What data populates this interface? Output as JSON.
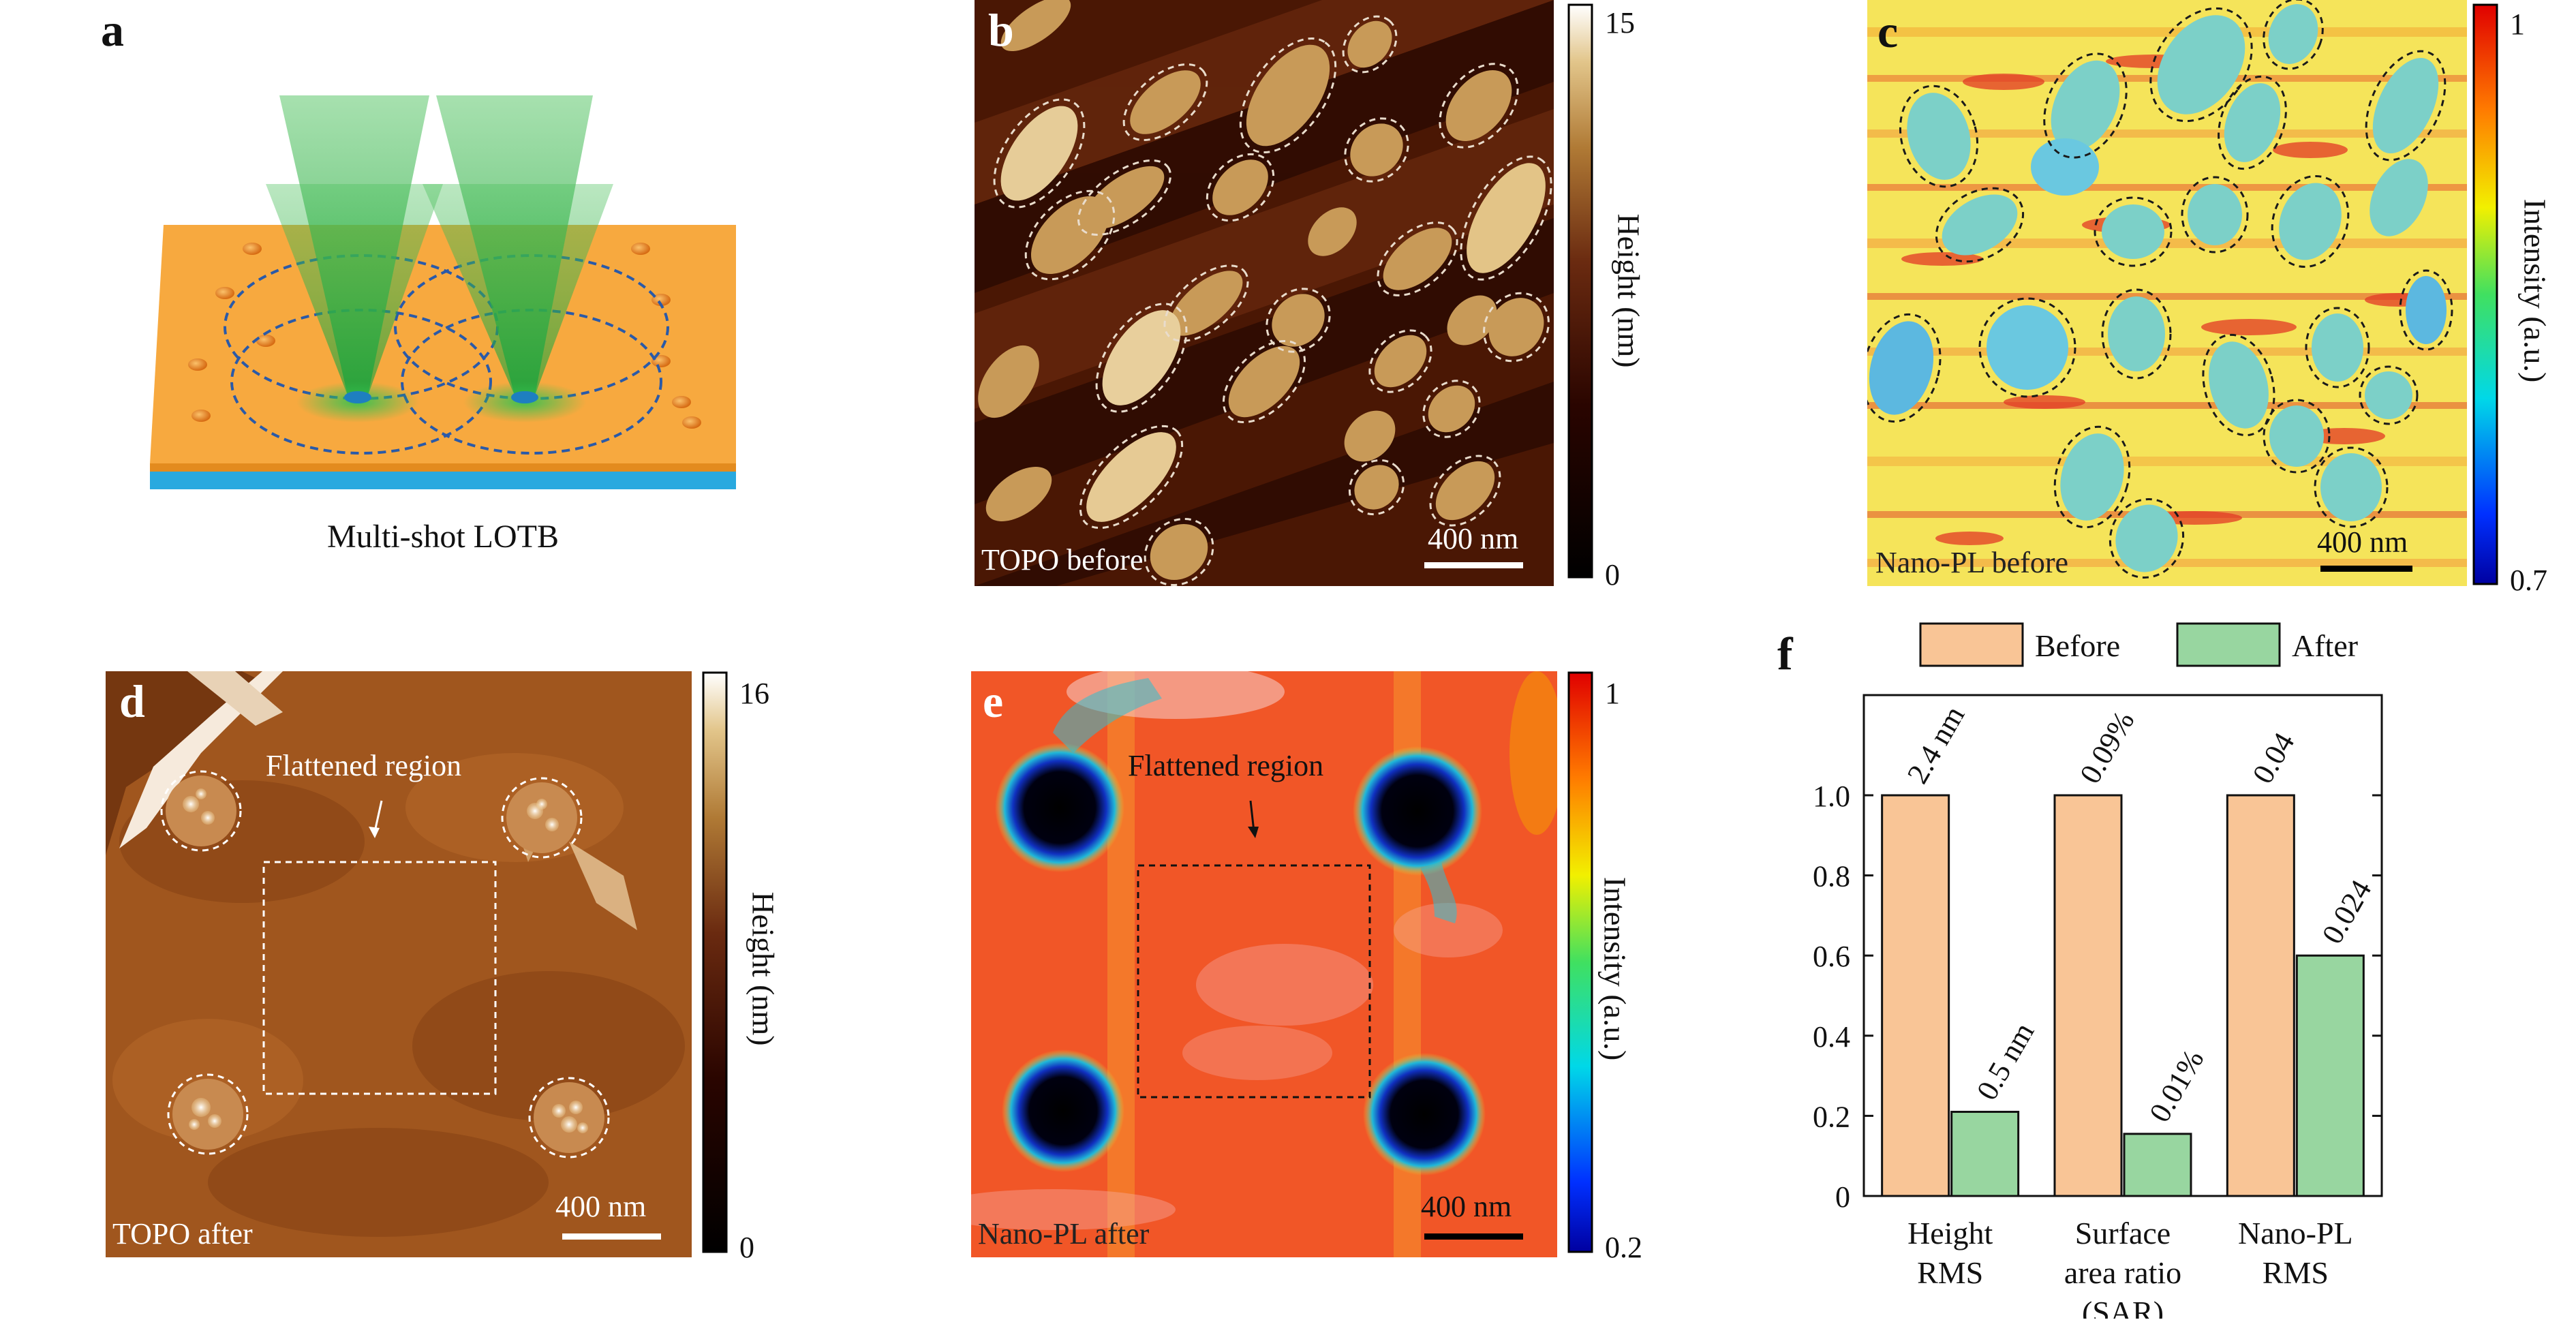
{
  "figure": {
    "panels": {
      "a": {
        "label": "a",
        "caption": "Multi-shot LOTB"
      },
      "b": {
        "label": "b",
        "image_label": "TOPO before",
        "scalebar": "400 nm",
        "colorbar": {
          "max": "15",
          "min": "0",
          "title": "Height (nm)"
        }
      },
      "c": {
        "label": "c",
        "image_label": "Nano-PL before",
        "scalebar": "400 nm",
        "colorbar": {
          "max": "1",
          "min": "0.7",
          "title": "Intensity (a.u.)"
        }
      },
      "d": {
        "label": "d",
        "image_label": "TOPO after",
        "scalebar": "400 nm",
        "annotation": "Flattened region",
        "colorbar": {
          "max": "16",
          "min": "0",
          "title": "Height (nm)"
        }
      },
      "e": {
        "label": "e",
        "image_label": "Nano-PL after",
        "scalebar": "400 nm",
        "annotation": "Flattened region",
        "colorbar": {
          "max": "1",
          "min": "0.2",
          "title": "Intensity (a.u.)"
        }
      },
      "f": {
        "label": "f"
      }
    },
    "colors": {
      "before": "#f9c596",
      "after": "#98d6a0",
      "substrate_orange": "#f7a93f",
      "substrate_blue": "#29a9df",
      "beam_green": "#2fb44a"
    }
  },
  "chart_data": {
    "type": "bar",
    "categories": [
      "Height RMS",
      "Surface area ratio (SAR)",
      "Nano-PL RMS"
    ],
    "category_lines": [
      [
        "Height",
        "RMS"
      ],
      [
        "Surface",
        "area ratio",
        "(SAR)"
      ],
      [
        "Nano-PL",
        "RMS"
      ]
    ],
    "series": [
      {
        "name": "Before",
        "values": [
          1.0,
          1.0,
          1.0
        ],
        "labels": [
          "2.4 nm",
          "0.09%",
          "0.04"
        ]
      },
      {
        "name": "After",
        "values": [
          0.21,
          0.155,
          0.6
        ],
        "labels": [
          "0.5 nm",
          "0.01%",
          "0.024"
        ]
      }
    ],
    "ylim": [
      0,
      1.25
    ],
    "yticks": [
      "0",
      "0.2",
      "0.4",
      "0.6",
      "0.8",
      "1.0"
    ],
    "ytick_values": [
      0,
      0.2,
      0.4,
      0.6,
      0.8,
      1.0
    ],
    "legend": "top",
    "xlabel": "",
    "ylabel": ""
  }
}
